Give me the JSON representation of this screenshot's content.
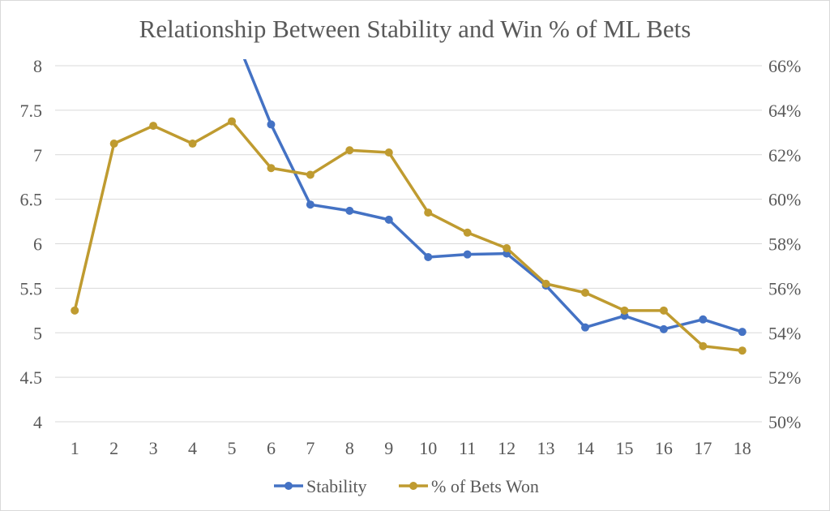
{
  "chart_data": {
    "type": "line",
    "title": "Relationship Between Stability and Win % of ML Bets",
    "categories": [
      "1",
      "2",
      "3",
      "4",
      "5",
      "6",
      "7",
      "8",
      "9",
      "10",
      "11",
      "12",
      "13",
      "14",
      "15",
      "16",
      "17",
      "18"
    ],
    "y_left": {
      "range": [
        4,
        8
      ],
      "ticks": [
        "4",
        "4.5",
        "5",
        "5.5",
        "6",
        "6.5",
        "7",
        "7.5",
        "8"
      ]
    },
    "y_right": {
      "range": [
        0.5,
        0.66
      ],
      "ticks": [
        "50%",
        "52%",
        "54%",
        "56%",
        "58%",
        "60%",
        "62%",
        "64%",
        "66%"
      ]
    },
    "grid": true,
    "legend_position": "bottom",
    "series": [
      {
        "name": "Stability",
        "axis": "left",
        "color": "#4472c4",
        "values": [
          null,
          null,
          null,
          null,
          null,
          7.34,
          6.44,
          6.37,
          6.27,
          5.85,
          5.88,
          5.89,
          5.53,
          5.06,
          5.19,
          5.04,
          5.15,
          5.01
        ],
        "unmarked_start": {
          "x": 5.3,
          "y": 8.1
        }
      },
      {
        "name": "% of Bets Won",
        "axis": "right",
        "color": "#bf9b30",
        "values": [
          0.55,
          0.625,
          0.633,
          0.625,
          0.635,
          0.614,
          0.611,
          0.622,
          0.621,
          0.594,
          0.585,
          0.578,
          0.562,
          0.558,
          0.55,
          0.55,
          0.534,
          0.532
        ]
      }
    ]
  }
}
